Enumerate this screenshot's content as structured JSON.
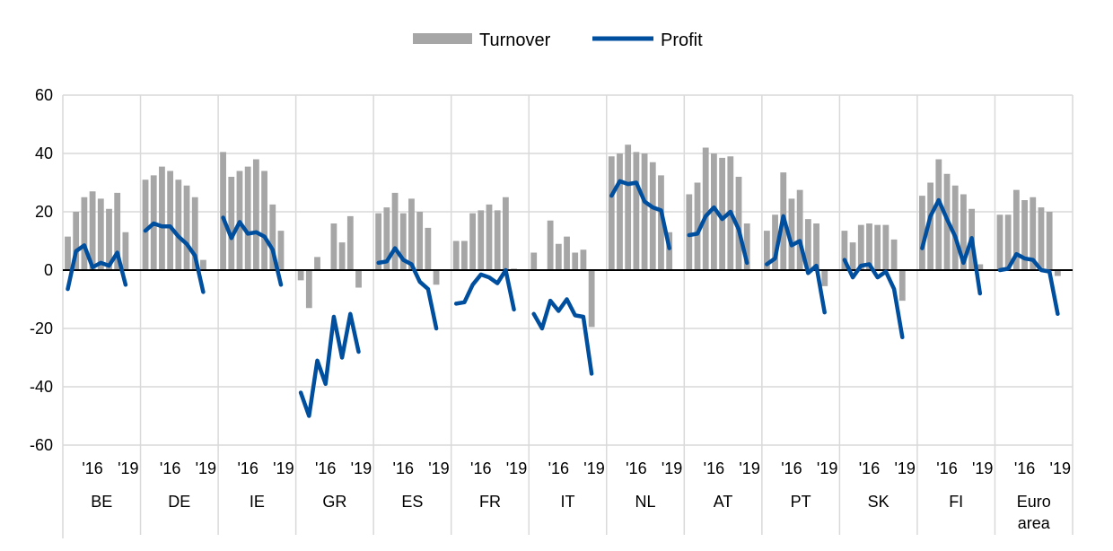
{
  "chart_data": {
    "type": "bar+line",
    "legend": {
      "placement": "top-center",
      "entries": [
        "Turnover",
        "Profit"
      ]
    },
    "series": [
      {
        "name": "Turnover",
        "kind": "bar",
        "color": "#a6a6a6"
      },
      {
        "name": "Profit",
        "kind": "line",
        "color": "#004f9f"
      }
    ],
    "ylim": [
      -60,
      60
    ],
    "yticks": [
      60,
      40,
      20,
      0,
      -20,
      -40,
      -60
    ],
    "grid": true,
    "sub_tick_labels": [
      "'16",
      "'19"
    ],
    "groups": [
      {
        "label": "BE",
        "turnover": [
          11.5,
          20,
          25,
          27,
          24.5,
          21,
          26.5,
          13
        ],
        "profit": [
          -6.5,
          6.5,
          8.5,
          1,
          2.5,
          1.5,
          6,
          -5
        ]
      },
      {
        "label": "DE",
        "turnover": [
          31,
          32.5,
          35.5,
          34,
          31,
          29,
          25,
          3.5
        ],
        "profit": [
          13.5,
          16,
          15,
          15,
          11.5,
          9,
          5,
          -7.5
        ]
      },
      {
        "label": "IE",
        "turnover": [
          40.5,
          32,
          34,
          35.5,
          38,
          34,
          22.5,
          13.5
        ],
        "profit": [
          18,
          11,
          16.5,
          12.5,
          13,
          11.5,
          7,
          -5
        ]
      },
      {
        "label": "GR",
        "turnover": [
          -3.5,
          -13,
          4.5,
          0,
          16,
          9.5,
          18.5,
          -6
        ],
        "profit": [
          -42,
          -50,
          -31,
          -39,
          -16,
          -30,
          -15,
          -28
        ]
      },
      {
        "label": "ES",
        "turnover": [
          19.5,
          21.5,
          26.5,
          19.5,
          24.5,
          20,
          14.5,
          -5
        ],
        "profit": [
          2.5,
          3,
          7.5,
          3.5,
          2,
          -4,
          -6.5,
          -20
        ]
      },
      {
        "label": "FR",
        "turnover": [
          10,
          10,
          19.5,
          20.5,
          22.5,
          20.5,
          25,
          0.5
        ],
        "profit": [
          -11.5,
          -11,
          -5,
          -1.5,
          -2.5,
          -4.5,
          0,
          -13.5
        ]
      },
      {
        "label": "IT",
        "turnover": [
          6,
          0,
          17,
          9,
          11.5,
          6,
          7,
          -19.5
        ],
        "profit": [
          -15,
          -20,
          -10.5,
          -14,
          -10,
          -15.5,
          -16,
          -35.5
        ]
      },
      {
        "label": "NL",
        "turnover": [
          39,
          40,
          43,
          40.5,
          40,
          37,
          32.5,
          13
        ],
        "profit": [
          25.5,
          30.5,
          29.5,
          30,
          23.5,
          21.5,
          20.5,
          7.5
        ]
      },
      {
        "label": "AT",
        "turnover": [
          26,
          30,
          42,
          40,
          38.5,
          39,
          32,
          16
        ],
        "profit": [
          12,
          12.5,
          18.5,
          21.5,
          17.5,
          20,
          14,
          2.5
        ]
      },
      {
        "label": "PT",
        "turnover": [
          13.5,
          19,
          33.5,
          24.5,
          27.5,
          17.5,
          16,
          -5.5
        ],
        "profit": [
          2,
          4,
          18.5,
          8.5,
          10,
          -1,
          1.5,
          -14.5
        ]
      },
      {
        "label": "SK",
        "turnover": [
          13.5,
          9.5,
          15.5,
          16,
          15.5,
          15.5,
          10.5,
          -10.5
        ],
        "profit": [
          3.5,
          -2.5,
          1.5,
          2,
          -2.5,
          -0.5,
          -6.5,
          -23
        ]
      },
      {
        "label": "FI",
        "turnover": [
          25.5,
          30,
          38,
          33,
          29,
          26,
          21,
          2
        ],
        "profit": [
          7.5,
          18.5,
          24,
          17.5,
          11.5,
          2.5,
          11,
          -8
        ]
      },
      {
        "label": "Euro area",
        "turnover": [
          19,
          19,
          27.5,
          24,
          25,
          21.5,
          20,
          -2
        ],
        "profit": [
          0,
          0.5,
          5.5,
          4,
          3.5,
          0,
          -0.5,
          -15
        ]
      }
    ]
  }
}
